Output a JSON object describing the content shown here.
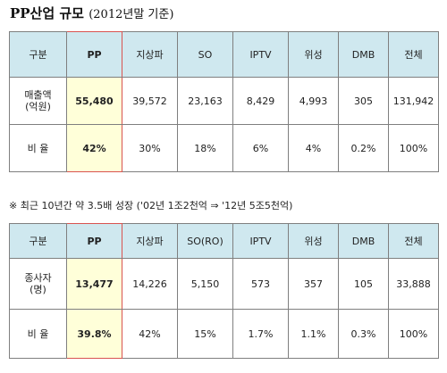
{
  "title": {
    "main": "PP산업 규모",
    "sub": "(2012년말 기준)"
  },
  "table1": {
    "headers": [
      "구분",
      "PP",
      "지상파",
      "SO",
      "IPTV",
      "위성",
      "DMB",
      "전체"
    ],
    "row1": {
      "label": "매출액\n(억원)",
      "values": [
        "55,480",
        "39,572",
        "23,163",
        "8,429",
        "4,993",
        "305",
        "131,942"
      ]
    },
    "row2": {
      "label": "비  율",
      "values": [
        "42%",
        "30%",
        "18%",
        "6%",
        "4%",
        "0.2%",
        "100%"
      ]
    }
  },
  "note": "※ 최근 10년간 약 3.5배 성장 ('02년 1조2천억 ⇒ '12년 5조5천억)",
  "table2": {
    "headers": [
      "구분",
      "PP",
      "지상파",
      "SO(RO)",
      "IPTV",
      "위성",
      "DMB",
      "전체"
    ],
    "row1": {
      "label": "종사자\n(명)",
      "values": [
        "13,477",
        "14,226",
        "5,150",
        "573",
        "357",
        "105",
        "33,888"
      ]
    },
    "row2": {
      "label": "비  율",
      "values": [
        "39.8%",
        "42%",
        "15%",
        "1.7%",
        "1.1%",
        "0.3%",
        "100%"
      ]
    }
  }
}
